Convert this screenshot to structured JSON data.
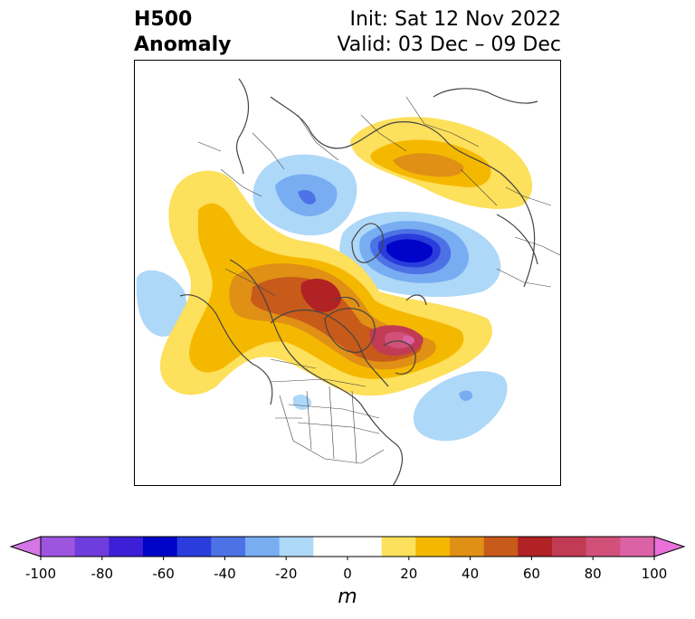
{
  "header": {
    "variable": "H500",
    "field": "Anomaly",
    "init": "Init: Sat 12 Nov 2022",
    "valid": "Valid: 03 Dec – 09 Dec"
  },
  "colorbar": {
    "unit": "m",
    "tick_labels": [
      "-100",
      "-80",
      "-60",
      "-40",
      "-20",
      "0",
      "20",
      "40",
      "60",
      "80",
      "100"
    ],
    "range": [
      -100,
      100
    ],
    "step": 10,
    "extend": "both",
    "colors": [
      "#d476e6",
      "#9d55e0",
      "#6f3ddb",
      "#3e1fd8",
      "#0004c9",
      "#2a3ddc",
      "#4d72e5",
      "#78adf2",
      "#aed8f8",
      "#ffffff",
      "#ffffff",
      "#fde05b",
      "#f5b800",
      "#e09015",
      "#c85a1a",
      "#b02224",
      "#c23b55",
      "#d0507a",
      "#dc62a6",
      "#e970d9"
    ]
  },
  "map": {
    "projection": "north-polar-stereographic",
    "feature_colors": {
      "coastline": "#444444",
      "borders": "#444444"
    }
  }
}
